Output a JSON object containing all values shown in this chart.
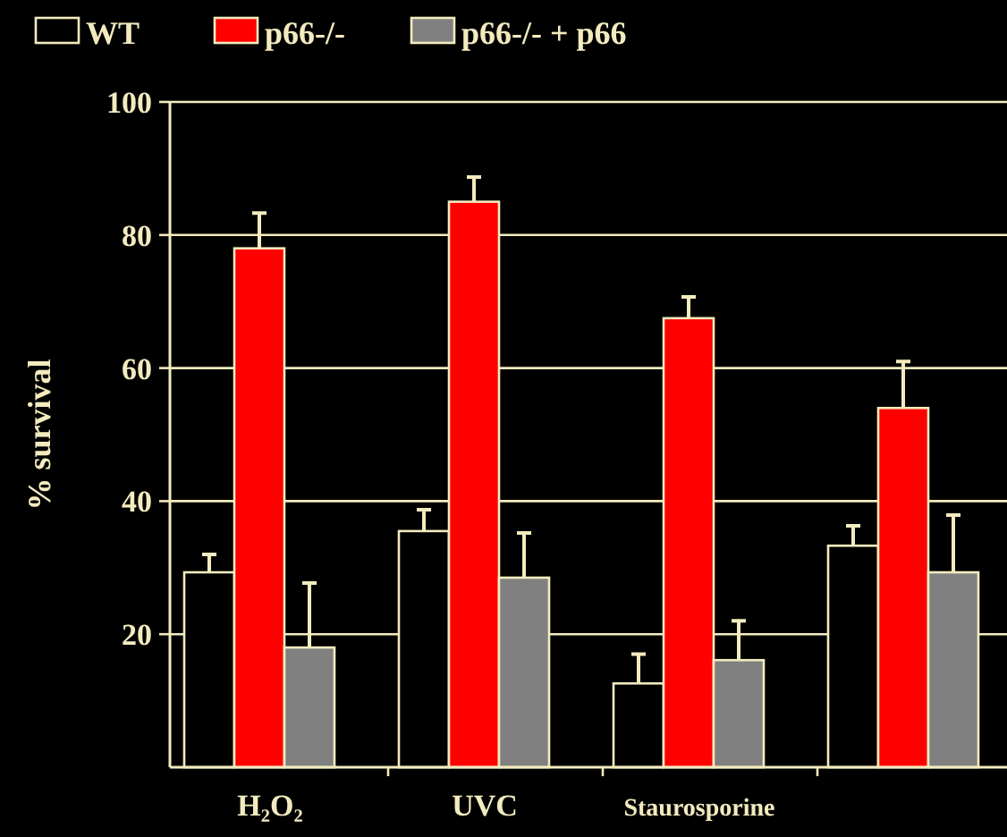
{
  "chart_data": {
    "type": "bar",
    "ylabel": "% survival",
    "categories": [
      "H₂O₂",
      "UVC",
      "Staurosporine",
      null
    ],
    "series": [
      {
        "name": "WT",
        "color": "#000000",
        "values": [
          29.3,
          35.5,
          12.6,
          33.3
        ],
        "errors": [
          [
            29.3,
            32
          ],
          [
            35.5,
            38.7
          ],
          [
            12.6,
            17
          ],
          [
            33.3,
            36.3
          ]
        ]
      },
      {
        "name": "p66-/-",
        "color": "#ff0000",
        "values": [
          78,
          85,
          67.5,
          54
        ],
        "errors": [
          [
            78,
            83.3
          ],
          [
            85,
            88.7
          ],
          [
            67.5,
            70.7
          ],
          [
            54,
            61
          ]
        ]
      },
      {
        "name": "p66-/- + p66",
        "color": "#808080",
        "values": [
          18,
          28.5,
          16.1,
          29.3
        ],
        "errors": [
          [
            18,
            27.7
          ],
          [
            28.5,
            35.2
          ],
          [
            16.1,
            22
          ],
          [
            29.3,
            37.9
          ]
        ]
      }
    ],
    "ylim": [
      0,
      100
    ],
    "yticks": [
      20,
      40,
      60,
      80,
      100
    ],
    "grid": "y",
    "legend": "top"
  }
}
